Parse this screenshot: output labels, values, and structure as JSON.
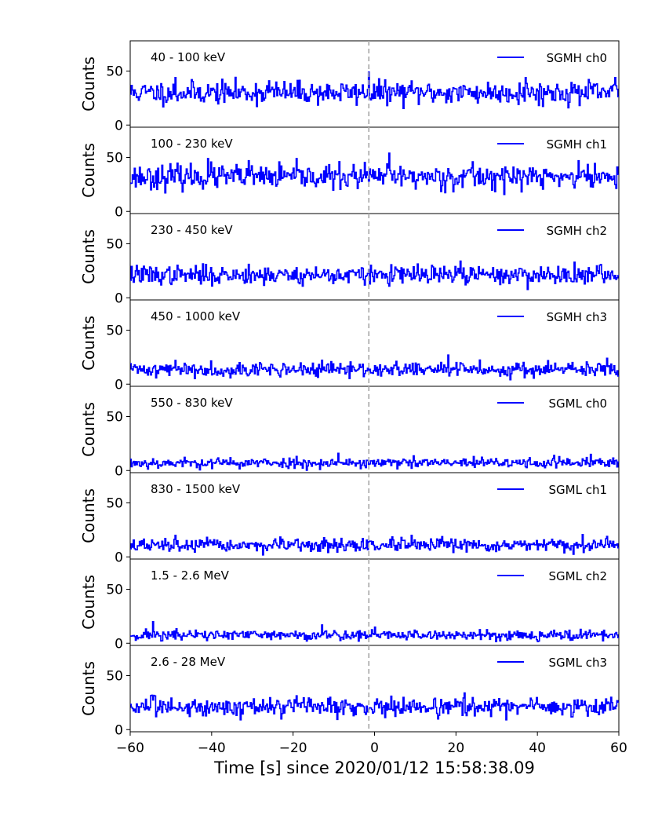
{
  "chart_data": {
    "type": "line",
    "xlabel": "Time [s] since 2020/01/12 15:58:38.09",
    "xlim": [
      -60,
      60
    ],
    "x_ticks": [
      -60,
      -40,
      -20,
      0,
      20,
      40,
      60
    ],
    "x_tick_labels": [
      "−60",
      "−40",
      "−20",
      "0",
      "20",
      "40",
      "60"
    ],
    "ylim": [
      -2,
      78
    ],
    "y_ticks": [
      0,
      50
    ],
    "ylabel": "Counts",
    "event_marker_x": -1.4,
    "line_color": "#0000ff",
    "marker_color": "#b0b0b0",
    "bin_width_s": 0.25,
    "grid": false,
    "legend_position": "top-right",
    "panels": [
      {
        "energy_label": "40 - 100 keV",
        "series_name": "SGMH ch0",
        "mean": 30,
        "noise_sd": 5.2,
        "seed": 11,
        "peaks": [
          [
            -1.3,
            49
          ],
          [
            -49,
            44
          ],
          [
            -26,
            41
          ],
          [
            37,
            44
          ],
          [
            59,
            44
          ]
        ]
      },
      {
        "energy_label": "100 - 230 keV",
        "series_name": "SGMH ch1",
        "mean": 32,
        "noise_sd": 5.5,
        "seed": 23,
        "peaks": [
          [
            3.5,
            54
          ],
          [
            -41,
            49
          ],
          [
            -31,
            47
          ],
          [
            50,
            47
          ],
          [
            24,
            46
          ]
        ]
      },
      {
        "energy_label": "230 - 450 keV",
        "series_name": "SGMH ch2",
        "mean": 21,
        "noise_sd": 4.3,
        "seed": 37,
        "peaks": [
          [
            21,
            34
          ],
          [
            -31,
            31
          ],
          [
            49,
            33
          ],
          [
            -58.5,
            30
          ]
        ]
      },
      {
        "energy_label": "450 - 1000 keV",
        "series_name": "SGMH ch3",
        "mean": 13.5,
        "noise_sd": 3.3,
        "seed": 41,
        "peaks": [
          [
            18,
            27
          ],
          [
            57,
            24
          ],
          [
            -49,
            22
          ]
        ]
      },
      {
        "energy_label": "550 - 830 keV",
        "series_name": "SGML ch0",
        "mean": 7,
        "noise_sd": 2.4,
        "seed": 53,
        "peaks": [
          [
            -9,
            16
          ],
          [
            53,
            15
          ],
          [
            44,
            14
          ]
        ]
      },
      {
        "energy_label": "830 - 1500 keV",
        "series_name": "SGML ch1",
        "mean": 10.5,
        "noise_sd": 3.0,
        "seed": 67,
        "peaks": [
          [
            9,
            20
          ],
          [
            -49,
            20
          ],
          [
            57,
            19
          ]
        ]
      },
      {
        "energy_label": "1.5 - 2.6 MeV",
        "series_name": "SGML ch2",
        "mean": 7.5,
        "noise_sd": 2.5,
        "seed": 71,
        "peaks": [
          [
            -54.5,
            20
          ],
          [
            -13,
            17
          ],
          [
            0,
            15
          ]
        ]
      },
      {
        "energy_label": "2.6 - 28 MeV",
        "series_name": "SGML ch3",
        "mean": 21,
        "noise_sd": 4.3,
        "seed": 83,
        "peaks": [
          [
            22,
            34
          ],
          [
            -11,
            30
          ],
          [
            58,
            30
          ]
        ]
      }
    ]
  }
}
